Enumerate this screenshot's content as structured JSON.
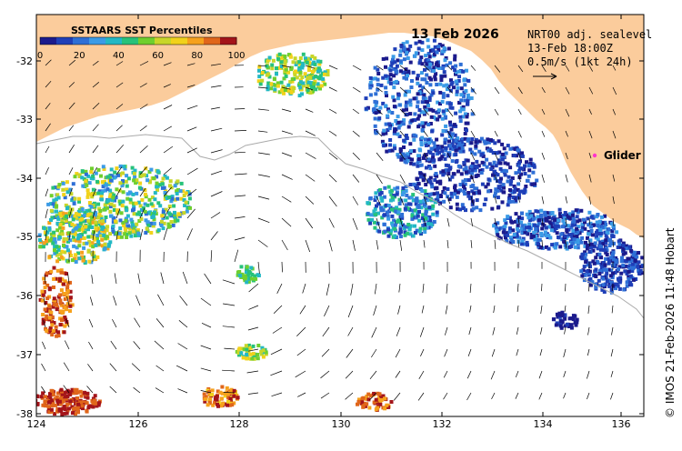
{
  "map": {
    "date_title": "13 Feb 2026",
    "legend": {
      "title": "SSTAARS SST Percentiles",
      "ticks": [
        "0",
        "20",
        "40",
        "60",
        "80",
        "100"
      ],
      "colors": [
        "#1b1a8c",
        "#1f3fb8",
        "#2e6fd6",
        "#3b9be6",
        "#23b8c4",
        "#27c27a",
        "#6fcf2e",
        "#c8d629",
        "#f1d21b",
        "#f6a11c",
        "#e0661a",
        "#a3141a"
      ]
    },
    "info": {
      "line1": "NRT00 adj. sealevel",
      "line2": "13-Feb 18:00Z",
      "line3": "0.5m/s (1kt 24h)"
    },
    "glider_label": "Glider",
    "credit": "© IMOS 21-Feb-2026 11:48 Hobart",
    "x_axis_ticks": [
      "124",
      "126",
      "128",
      "130",
      "132",
      "134",
      "136"
    ],
    "y_axis_ticks": [
      "-32",
      "-33",
      "-34",
      "-35",
      "-36",
      "-37",
      "-38"
    ],
    "colors": {
      "land": "#fbcc9c",
      "shelf_contour": "#aaaaaa",
      "glider": "#ff33cc"
    }
  }
}
